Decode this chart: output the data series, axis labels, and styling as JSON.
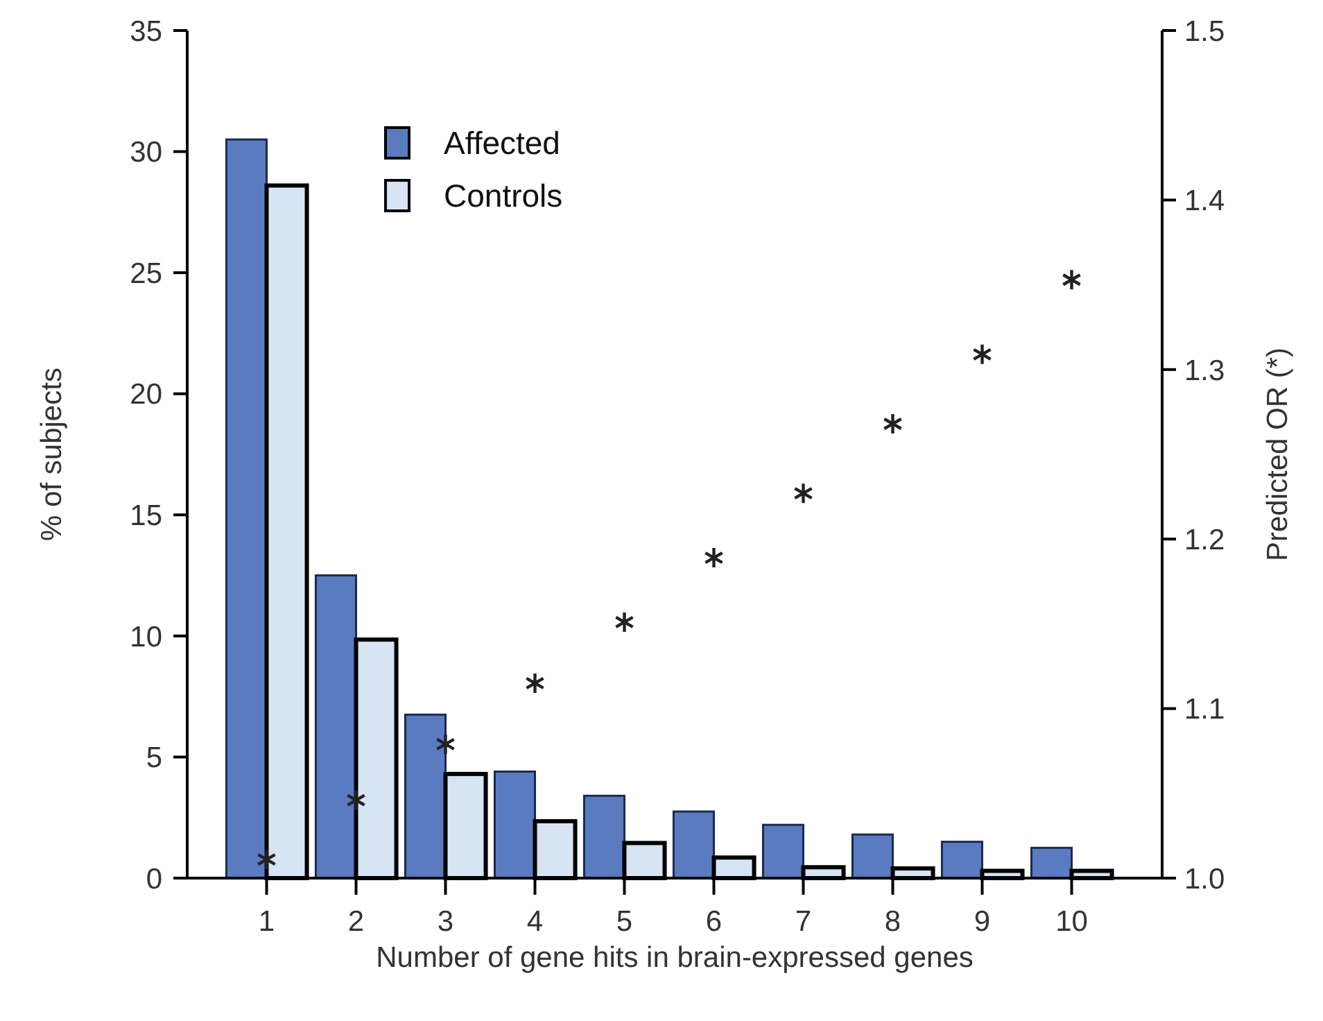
{
  "chart_data": {
    "type": "bar",
    "xlabel": "Number of gene hits in brain-expressed genes",
    "ylabel": "% of subjects",
    "y2label": "Predicted OR (*)",
    "categories": [
      "1",
      "2",
      "3",
      "4",
      "5",
      "6",
      "7",
      "8",
      "9",
      "10"
    ],
    "series": [
      {
        "name": "Affected",
        "color": "#5a7bc0",
        "values": [
          30.5,
          12.5,
          6.75,
          4.4,
          3.4,
          2.75,
          2.2,
          1.8,
          1.5,
          1.25
        ]
      },
      {
        "name": "Controls",
        "color": "#d6e4f4",
        "values": [
          28.6,
          9.85,
          4.3,
          2.35,
          1.45,
          0.85,
          0.45,
          0.4,
          0.3,
          0.3
        ]
      },
      {
        "type": "scatter",
        "axis": "y2",
        "color": "#222222",
        "marker": "cross",
        "x": [
          "1",
          "2",
          "3",
          "4",
          "5",
          "6",
          "7",
          "8",
          "9",
          "10"
        ],
        "values": [
          1.011,
          1.046,
          1.079,
          1.115,
          1.151,
          1.189,
          1.227,
          1.268,
          1.309,
          1.353
        ]
      }
    ],
    "ylim": [
      0,
      35
    ],
    "yticks": [
      0,
      5,
      10,
      15,
      20,
      25,
      30,
      35
    ],
    "y2lim": [
      1.0,
      1.5
    ],
    "y2ticks": [
      {
        "value": 1.0,
        "label": "1.0"
      },
      {
        "value": 1.1,
        "label": "1.1"
      },
      {
        "value": 1.2,
        "label": "1.2"
      },
      {
        "value": 1.3,
        "label": "1.3"
      },
      {
        "value": 1.4,
        "label": "1.4"
      },
      {
        "value": 1.5,
        "label": "1.5"
      }
    ],
    "legend": "top left",
    "grid": false
  }
}
